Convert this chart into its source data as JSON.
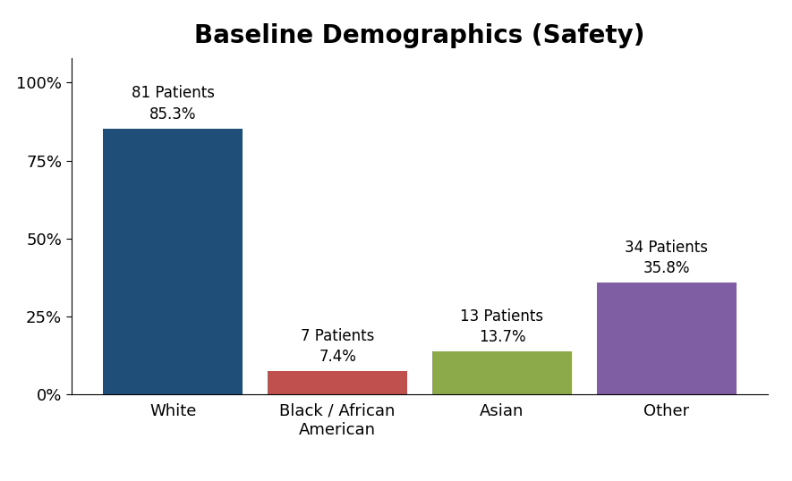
{
  "title": "Baseline Demographics (Safety)",
  "categories": [
    "White",
    "Black / African\nAmerican",
    "Asian",
    "Other"
  ],
  "values": [
    85.3,
    7.4,
    13.7,
    35.8
  ],
  "bar_colors": [
    "#1F4E79",
    "#C0504D",
    "#8DAA4A",
    "#7F5EA3"
  ],
  "bar_labels": [
    "81 Patients\n85.3%",
    "7 Patients\n7.4%",
    "13 Patients\n13.7%",
    "34 Patients\n35.8%"
  ],
  "yticks": [
    0,
    25,
    50,
    75,
    100
  ],
  "ytick_labels": [
    "0%",
    "25%",
    "50%",
    "75%",
    "100%"
  ],
  "ylim": [
    0,
    108
  ],
  "background_color": "#FFFFFF",
  "title_fontsize": 20,
  "tick_fontsize": 13,
  "bar_label_fontsize": 12,
  "bar_width": 0.85,
  "figure_border_color": "#AAAAAA"
}
